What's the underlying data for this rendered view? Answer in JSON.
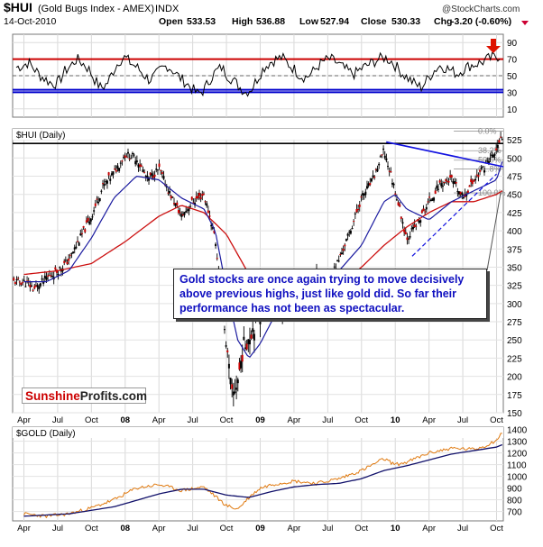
{
  "header": {
    "symbol": "$HUI",
    "name": "(Gold Bugs Index - AMEX)",
    "exchange": "INDX",
    "date": "14-Oct-2010",
    "open_label": "Open",
    "open": "533.53",
    "high_label": "High",
    "high": "536.88",
    "low_label": "Low",
    "low": "527.94",
    "close_label": "Close",
    "close": "530.33",
    "chg_label": "Chg",
    "chg": "-3.20 (-0.60%)",
    "watermark": "@StockCharts.com",
    "down_color": "#cc0033"
  },
  "annotation": {
    "text": "Gold stocks are once again trying to move decisively above previous highs, just like gold did. So far their performance has not been as spectacular."
  },
  "logo": {
    "part1": "Sunshine",
    "part2": "Profits.com"
  },
  "colors": {
    "price": "#000000",
    "ma_fast": "#1c1ca0",
    "ma_slow": "#cc1111",
    "gold_price": "#e07a10",
    "trend_blue": "#1010e0",
    "rsi_red": "#cc0000",
    "rsi_blue": "#0000cc",
    "arrow": "#dd1100"
  },
  "chart_data": [
    {
      "type": "line",
      "panel": "rsi",
      "ylim": [
        0,
        100
      ],
      "yticks": [
        "90",
        "70",
        "50",
        "30",
        "10"
      ],
      "ytick_values": [
        90,
        70,
        50,
        30,
        10
      ],
      "reference_lines": {
        "red": 70,
        "blue": [
          33,
          30
        ]
      },
      "approx_series": [
        60,
        62,
        66,
        58,
        50,
        45,
        40,
        42,
        55,
        62,
        70,
        65,
        58,
        45,
        35,
        40,
        55,
        68,
        72,
        65,
        60,
        52,
        45,
        50,
        58,
        62,
        56,
        48,
        42,
        35,
        28,
        32,
        45,
        55,
        60,
        50,
        44,
        36,
        30,
        35,
        48,
        60,
        66,
        70,
        72,
        64,
        58,
        50,
        48,
        54,
        62,
        68,
        70,
        66,
        60,
        55,
        52,
        58,
        62,
        66,
        70,
        72,
        68,
        60,
        52,
        46,
        40,
        36,
        45,
        55,
        62,
        60,
        56,
        52,
        58,
        62,
        64,
        66,
        70,
        72,
        74
      ]
    },
    {
      "type": "line",
      "panel": "hui",
      "title": "$HUI (Daily)",
      "ylim": [
        150,
        540
      ],
      "yticks": [
        "525",
        "500",
        "475",
        "450",
        "425",
        "400",
        "375",
        "350",
        "325",
        "300",
        "275",
        "250",
        "225",
        "200",
        "175",
        "150"
      ],
      "ytick_values": [
        525,
        500,
        475,
        450,
        425,
        400,
        375,
        350,
        325,
        300,
        275,
        250,
        225,
        200,
        175,
        150
      ],
      "fib_labels": [
        "0.0%",
        "38.2%",
        "50.0%",
        "61.8%",
        "100.0%"
      ],
      "fib_values": [
        537,
        510,
        497,
        485,
        452
      ],
      "resistance": 520,
      "xticks": [
        "Apr",
        "Jul",
        "Oct",
        "08",
        "Apr",
        "Jul",
        "Oct",
        "09",
        "Apr",
        "Jul",
        "Oct",
        "10",
        "Apr",
        "Jul",
        "Oct"
      ],
      "x_months": [
        0,
        3,
        6,
        9,
        12,
        15,
        18,
        21,
        24,
        27,
        30,
        33,
        36,
        39,
        42
      ],
      "x_range_months": [
        -1,
        42.6
      ],
      "approx_close": {
        "months": [
          0,
          1,
          2,
          3,
          4,
          5,
          6,
          7,
          8,
          9,
          10,
          11,
          12,
          13,
          14,
          15,
          16,
          17,
          18,
          18.5,
          19,
          19.5,
          20,
          21,
          22,
          23,
          24,
          25,
          26,
          27,
          28,
          29,
          30,
          31,
          32,
          33,
          34,
          35,
          36,
          37,
          38,
          39,
          40,
          41,
          42,
          42.5
        ],
        "values": [
          330,
          320,
          335,
          345,
          360,
          390,
          420,
          460,
          480,
          505,
          500,
          470,
          485,
          450,
          420,
          440,
          450,
          390,
          240,
          170,
          195,
          240,
          255,
          290,
          310,
          280,
          305,
          330,
          345,
          330,
          360,
          400,
          445,
          470,
          510,
          455,
          390,
          410,
          440,
          465,
          470,
          445,
          470,
          490,
          510,
          530
        ]
      },
      "approx_ma50": {
        "months": [
          0,
          2,
          4,
          6,
          8,
          10,
          12,
          14,
          16,
          17,
          18,
          19,
          20,
          21,
          22,
          24,
          26,
          28,
          30,
          32,
          33,
          34,
          36,
          38,
          40,
          42,
          42.5
        ],
        "values": [
          330,
          330,
          345,
          390,
          445,
          475,
          470,
          445,
          430,
          400,
          320,
          250,
          225,
          245,
          275,
          300,
          320,
          345,
          380,
          440,
          450,
          430,
          415,
          440,
          455,
          470,
          495
        ]
      },
      "approx_ma200": {
        "months": [
          0,
          3,
          6,
          9,
          12,
          14,
          16,
          18,
          20,
          22,
          24,
          26,
          28,
          30,
          32,
          34,
          36,
          38,
          40,
          42,
          42.5
        ],
        "values": [
          340,
          345,
          355,
          385,
          420,
          435,
          425,
          395,
          340,
          300,
          285,
          300,
          325,
          350,
          380,
          405,
          425,
          440,
          440,
          450,
          455
        ]
      }
    },
    {
      "type": "line",
      "panel": "gold",
      "title": "$GOLD (Daily)",
      "ylim": [
        620,
        1420
      ],
      "yticks": [
        "1400",
        "1300",
        "1200",
        "1100",
        "1000",
        "900",
        "800",
        "700"
      ],
      "ytick_values": [
        1400,
        1300,
        1200,
        1100,
        1000,
        900,
        800,
        700
      ],
      "xticks": [
        "Apr",
        "Jul",
        "Oct",
        "08",
        "Apr",
        "Jul",
        "Oct",
        "09",
        "Apr",
        "Jul",
        "Oct",
        "10",
        "Apr",
        "Jul",
        "Oct"
      ],
      "x_months": [
        0,
        3,
        6,
        9,
        12,
        15,
        18,
        21,
        24,
        27,
        30,
        33,
        36,
        39,
        42
      ],
      "x_range_months": [
        -1,
        42.6
      ],
      "approx_price": {
        "months": [
          0,
          2,
          4,
          6,
          8,
          10,
          12,
          14,
          16,
          18,
          19,
          20,
          21,
          22,
          24,
          26,
          28,
          30,
          32,
          33,
          34,
          36,
          38,
          40,
          41,
          42,
          42.5
        ],
        "values": [
          680,
          660,
          680,
          730,
          800,
          900,
          930,
          880,
          910,
          750,
          720,
          820,
          900,
          930,
          960,
          940,
          980,
          1050,
          1150,
          1100,
          1120,
          1200,
          1240,
          1230,
          1260,
          1310,
          1370
        ]
      },
      "approx_ma": {
        "months": [
          0,
          4,
          8,
          12,
          14,
          16,
          18,
          20,
          22,
          24,
          26,
          28,
          30,
          32,
          34,
          36,
          38,
          40,
          42,
          42.5
        ],
        "values": [
          660,
          680,
          740,
          850,
          890,
          890,
          840,
          820,
          870,
          910,
          930,
          940,
          980,
          1050,
          1090,
          1140,
          1190,
          1220,
          1250,
          1270
        ]
      }
    }
  ]
}
